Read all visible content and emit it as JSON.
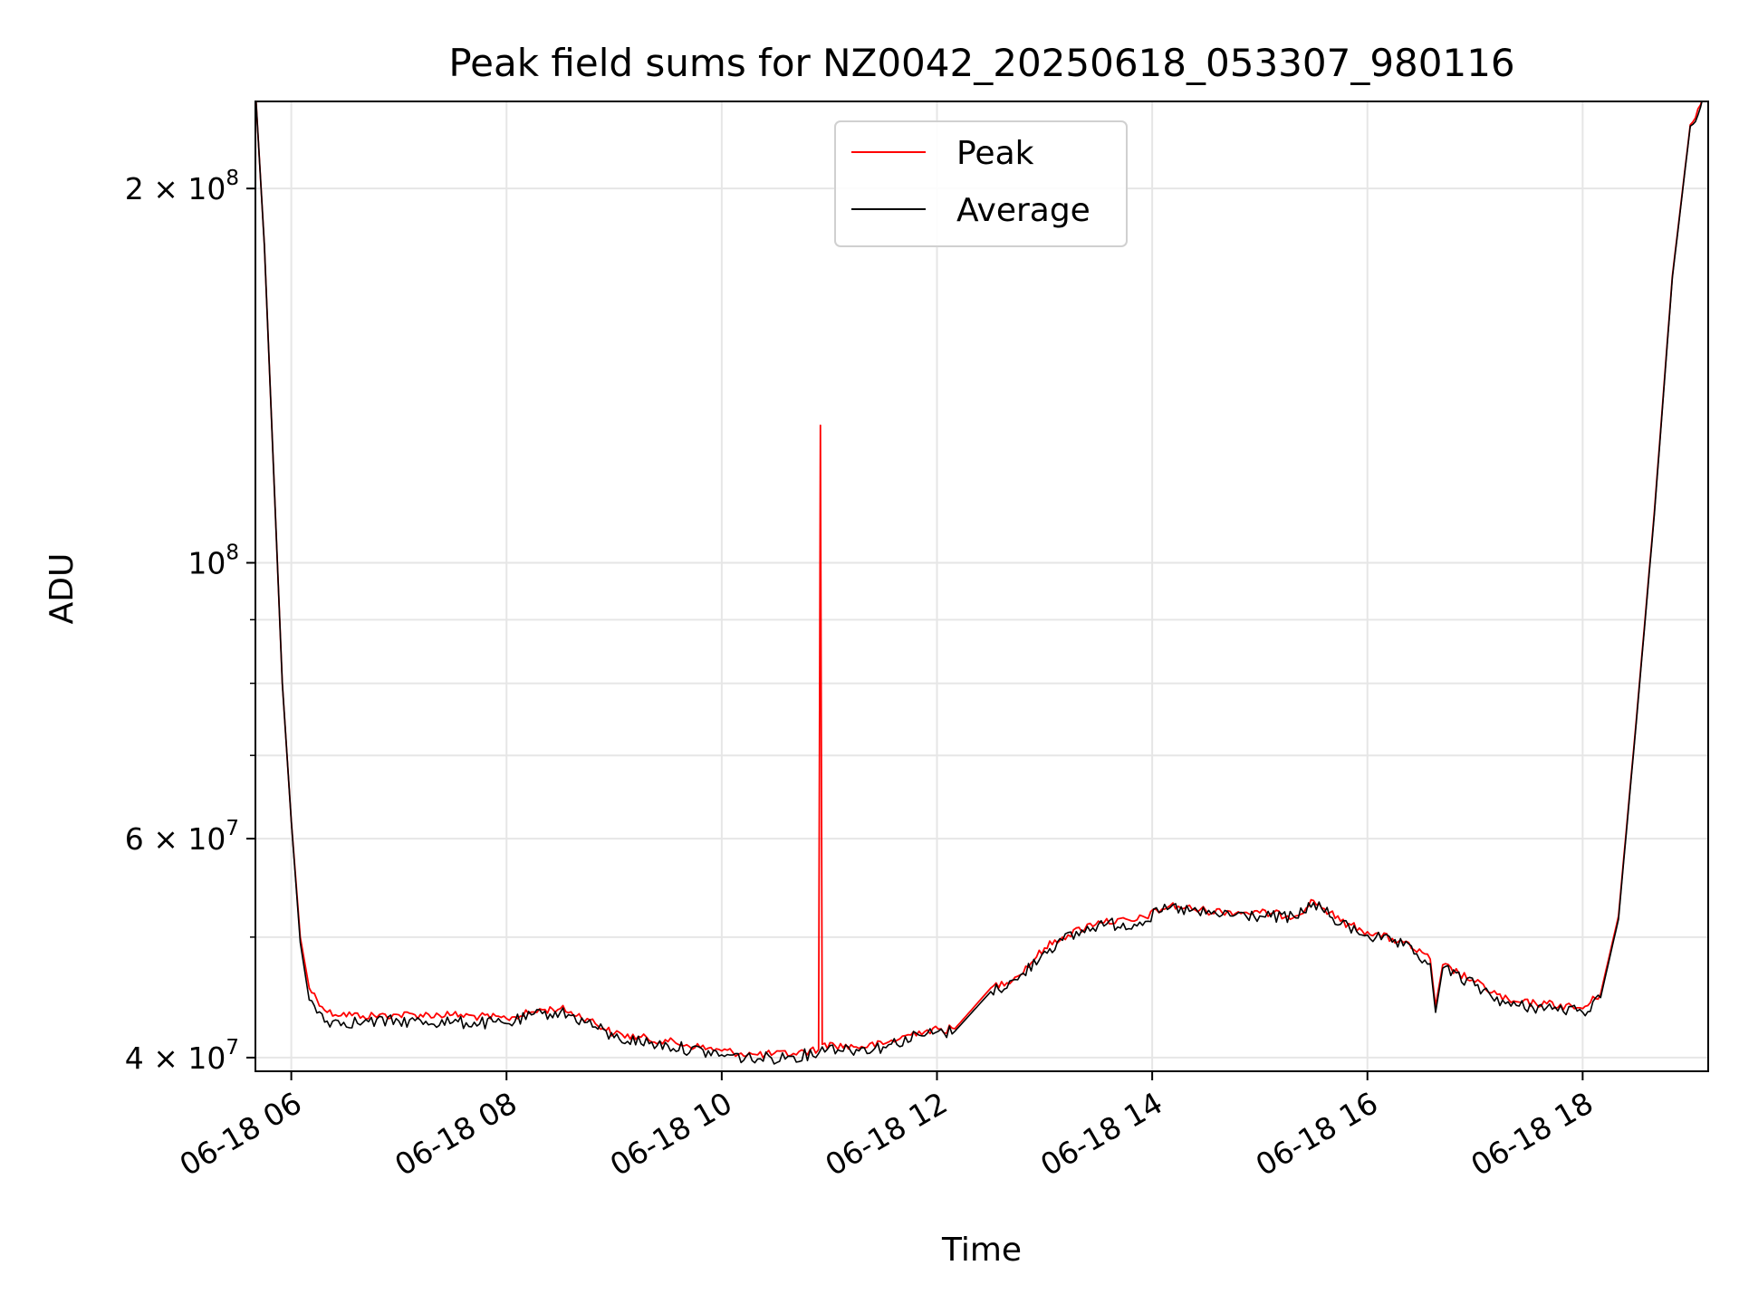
{
  "chart_data": {
    "type": "line",
    "title": "Peak field sums for NZ0042_20250618_053307_980116",
    "xlabel": "Time",
    "ylabel": "ADU",
    "y_scale": "log",
    "grid": true,
    "legend_position": "top-center",
    "xlim": [
      "2025-06-18 05:40",
      "2025-06-18 19:10"
    ],
    "ylim": [
      39000000,
      235000000
    ],
    "x_ticks": [
      {
        "value": "2025-06-18 06:00",
        "label": "06-18 06"
      },
      {
        "value": "2025-06-18 08:00",
        "label": "06-18 08"
      },
      {
        "value": "2025-06-18 10:00",
        "label": "06-18 10"
      },
      {
        "value": "2025-06-18 12:00",
        "label": "06-18 12"
      },
      {
        "value": "2025-06-18 14:00",
        "label": "06-18 14"
      },
      {
        "value": "2025-06-18 16:00",
        "label": "06-18 16"
      },
      {
        "value": "2025-06-18 18:00",
        "label": "06-18 18"
      }
    ],
    "y_ticks_major": [
      {
        "value": 40000000,
        "label_base": "4 × 10",
        "label_exp": "7"
      },
      {
        "value": 60000000,
        "label_base": "6 × 10",
        "label_exp": "7"
      },
      {
        "value": 100000000,
        "label_base": "10",
        "label_exp": "8"
      },
      {
        "value": 200000000,
        "label_base": "2 × 10",
        "label_exp": "8"
      }
    ],
    "y_ticks_minor": [
      50000000,
      70000000,
      80000000,
      90000000
    ],
    "series": [
      {
        "name": "Peak",
        "color": "#ff0000",
        "points": [
          [
            "2025-06-18 05:40",
            240000000
          ],
          [
            "2025-06-18 05:45",
            180000000
          ],
          [
            "2025-06-18 05:50",
            120000000
          ],
          [
            "2025-06-18 05:55",
            80000000
          ],
          [
            "2025-06-18 06:00",
            62000000
          ],
          [
            "2025-06-18 06:05",
            50000000
          ],
          [
            "2025-06-18 06:10",
            45500000
          ],
          [
            "2025-06-18 06:20",
            43500000
          ],
          [
            "2025-06-18 06:40",
            43200000
          ],
          [
            "2025-06-18 07:00",
            43300000
          ],
          [
            "2025-06-18 07:30",
            43300000
          ],
          [
            "2025-06-18 08:00",
            43000000
          ],
          [
            "2025-06-18 08:20",
            43700000
          ],
          [
            "2025-06-18 08:30",
            43800000
          ],
          [
            "2025-06-18 08:45",
            43000000
          ],
          [
            "2025-06-18 09:00",
            41800000
          ],
          [
            "2025-06-18 09:30",
            41200000
          ],
          [
            "2025-06-18 10:00",
            40500000
          ],
          [
            "2025-06-18 10:20",
            40200000
          ],
          [
            "2025-06-18 10:40",
            40300000
          ],
          [
            "2025-06-18 10:54",
            40600000
          ],
          [
            "2025-06-18 10:55",
            129000000
          ],
          [
            "2025-06-18 10:56",
            41000000
          ],
          [
            "2025-06-18 11:15",
            40800000
          ],
          [
            "2025-06-18 11:30",
            41000000
          ],
          [
            "2025-06-18 11:50",
            42000000
          ],
          [
            "2025-06-18 12:10",
            42200000
          ],
          [
            "2025-06-18 12:30",
            45500000
          ],
          [
            "2025-06-18 12:45",
            46500000
          ],
          [
            "2025-06-18 13:00",
            49000000
          ],
          [
            "2025-06-18 13:10",
            50000000
          ],
          [
            "2025-06-18 13:30",
            51500000
          ],
          [
            "2025-06-18 13:50",
            51500000
          ],
          [
            "2025-06-18 14:10",
            53000000
          ],
          [
            "2025-06-18 14:30",
            52500000
          ],
          [
            "2025-06-18 15:00",
            52300000
          ],
          [
            "2025-06-18 15:20",
            52000000
          ],
          [
            "2025-06-18 15:30",
            53500000
          ],
          [
            "2025-06-18 15:45",
            51500000
          ],
          [
            "2025-06-18 16:00",
            50500000
          ],
          [
            "2025-06-18 16:20",
            49500000
          ],
          [
            "2025-06-18 16:35",
            48000000
          ],
          [
            "2025-06-18 16:38",
            44000000
          ],
          [
            "2025-06-18 16:42",
            47500000
          ],
          [
            "2025-06-18 17:00",
            46000000
          ],
          [
            "2025-06-18 17:20",
            44300000
          ],
          [
            "2025-06-18 17:40",
            44200000
          ],
          [
            "2025-06-18 18:00",
            43800000
          ],
          [
            "2025-06-18 18:10",
            45000000
          ],
          [
            "2025-06-18 18:20",
            52000000
          ],
          [
            "2025-06-18 18:30",
            75000000
          ],
          [
            "2025-06-18 18:40",
            110000000
          ],
          [
            "2025-06-18 18:50",
            170000000
          ],
          [
            "2025-06-18 19:00",
            225000000
          ],
          [
            "2025-06-18 19:10",
            240000000
          ]
        ]
      },
      {
        "name": "Average",
        "color": "#000000",
        "points": [
          [
            "2025-06-18 05:40",
            240000000
          ],
          [
            "2025-06-18 05:45",
            180000000
          ],
          [
            "2025-06-18 05:50",
            120000000
          ],
          [
            "2025-06-18 05:55",
            80000000
          ],
          [
            "2025-06-18 06:00",
            62000000
          ],
          [
            "2025-06-18 06:05",
            49500000
          ],
          [
            "2025-06-18 06:10",
            44500000
          ],
          [
            "2025-06-18 06:20",
            42800000
          ],
          [
            "2025-06-18 06:40",
            42700000
          ],
          [
            "2025-06-18 07:00",
            42800000
          ],
          [
            "2025-06-18 07:30",
            42700000
          ],
          [
            "2025-06-18 08:00",
            42600000
          ],
          [
            "2025-06-18 08:20",
            43400000
          ],
          [
            "2025-06-18 08:30",
            43500000
          ],
          [
            "2025-06-18 08:45",
            42700000
          ],
          [
            "2025-06-18 09:00",
            41500000
          ],
          [
            "2025-06-18 09:30",
            40900000
          ],
          [
            "2025-06-18 10:00",
            40200000
          ],
          [
            "2025-06-18 10:20",
            39900000
          ],
          [
            "2025-06-18 10:40",
            40100000
          ],
          [
            "2025-06-18 10:54",
            40300000
          ],
          [
            "2025-06-18 10:56",
            40800000
          ],
          [
            "2025-06-18 11:15",
            40600000
          ],
          [
            "2025-06-18 11:30",
            40800000
          ],
          [
            "2025-06-18 11:50",
            41700000
          ],
          [
            "2025-06-18 12:10",
            42000000
          ],
          [
            "2025-06-18 12:30",
            45200000
          ],
          [
            "2025-06-18 12:45",
            46200000
          ],
          [
            "2025-06-18 13:00",
            48700000
          ],
          [
            "2025-06-18 13:10",
            49700000
          ],
          [
            "2025-06-18 13:30",
            51200000
          ],
          [
            "2025-06-18 13:50",
            51200000
          ],
          [
            "2025-06-18 14:10",
            52800000
          ],
          [
            "2025-06-18 14:30",
            52200000
          ],
          [
            "2025-06-18 15:00",
            52000000
          ],
          [
            "2025-06-18 15:20",
            51800000
          ],
          [
            "2025-06-18 15:30",
            53300000
          ],
          [
            "2025-06-18 15:45",
            51200000
          ],
          [
            "2025-06-18 16:00",
            50200000
          ],
          [
            "2025-06-18 16:20",
            49200000
          ],
          [
            "2025-06-18 16:35",
            47600000
          ],
          [
            "2025-06-18 16:38",
            43500000
          ],
          [
            "2025-06-18 16:42",
            47200000
          ],
          [
            "2025-06-18 17:00",
            45700000
          ],
          [
            "2025-06-18 17:20",
            44000000
          ],
          [
            "2025-06-18 17:40",
            43900000
          ],
          [
            "2025-06-18 18:00",
            43500000
          ],
          [
            "2025-06-18 18:10",
            44700000
          ],
          [
            "2025-06-18 18:20",
            51700000
          ],
          [
            "2025-06-18 18:30",
            74700000
          ],
          [
            "2025-06-18 18:40",
            109500000
          ],
          [
            "2025-06-18 18:50",
            169500000
          ],
          [
            "2025-06-18 19:00",
            224500000
          ],
          [
            "2025-06-18 19:10",
            240000000
          ]
        ]
      }
    ]
  }
}
